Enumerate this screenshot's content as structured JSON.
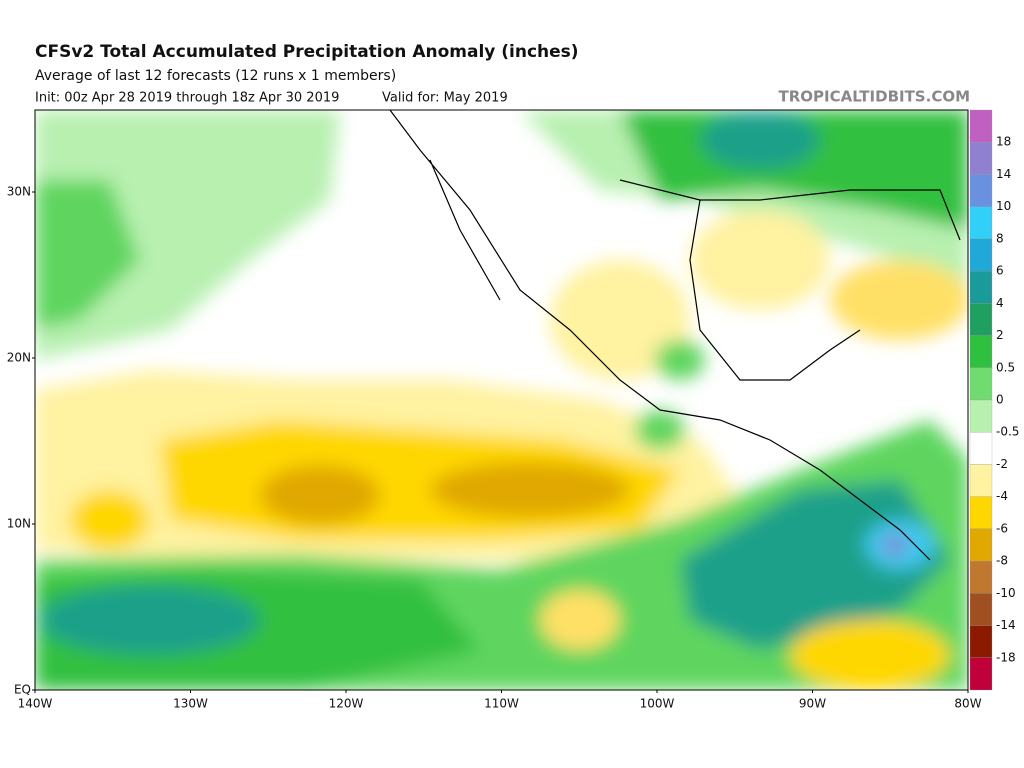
{
  "header": {
    "title": "CFSv2 Total Accumulated Precipitation Anomaly (inches)",
    "subtitle": "Average of last 12 forecasts (12 runs x 1 members)",
    "init": "Init: 00z Apr 28 2019 through 18z Apr 30 2019",
    "valid": "Valid for: May 2019",
    "brand": "TROPICALTIDBITS.COM"
  },
  "map": {
    "lat_labels": [
      "30N",
      "20N",
      "10N",
      "EQ"
    ],
    "lon_labels": [
      "140W",
      "130W",
      "120W",
      "110W",
      "100W",
      "90W",
      "80W"
    ]
  },
  "colorbar": {
    "labels": [
      "18",
      "14",
      "10",
      "8",
      "6",
      "4",
      "2",
      "0.5",
      "0",
      "-0.5",
      "-2",
      "-4",
      "-6",
      "-8",
      "-10",
      "-14",
      "-18"
    ]
  }
}
